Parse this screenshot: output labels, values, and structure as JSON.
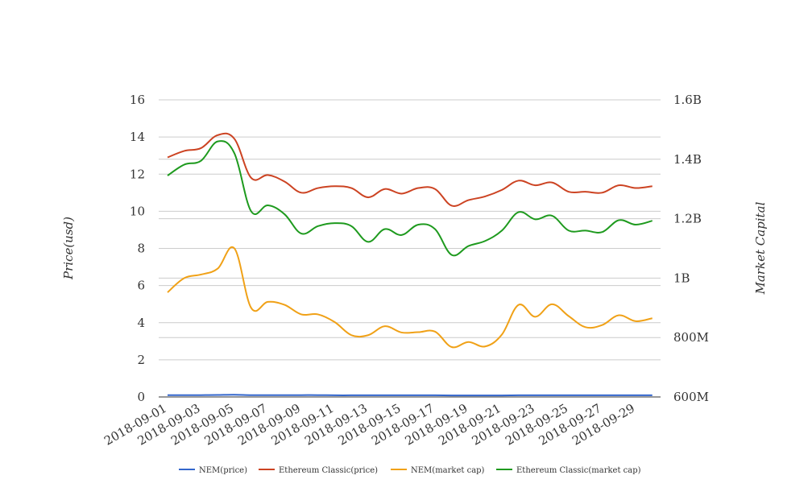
{
  "chart_data": {
    "type": "line",
    "x": [
      "2018-09-01",
      "2018-09-02",
      "2018-09-03",
      "2018-09-04",
      "2018-09-05",
      "2018-09-06",
      "2018-09-07",
      "2018-09-08",
      "2018-09-09",
      "2018-09-10",
      "2018-09-11",
      "2018-09-12",
      "2018-09-13",
      "2018-09-14",
      "2018-09-15",
      "2018-09-16",
      "2018-09-17",
      "2018-09-18",
      "2018-09-19",
      "2018-09-20",
      "2018-09-21",
      "2018-09-22",
      "2018-09-23",
      "2018-09-24",
      "2018-09-25",
      "2018-09-26",
      "2018-09-27",
      "2018-09-28",
      "2018-09-29",
      "2018-09-30"
    ],
    "x_tick_labels": [
      "2018-09-01",
      "2018-09-03",
      "2018-09-05",
      "2018-09-07",
      "2018-09-09",
      "2018-09-11",
      "2018-09-13",
      "2018-09-15",
      "2018-09-17",
      "2018-09-19",
      "2018-09-21",
      "2018-09-23",
      "2018-09-25",
      "2018-09-27",
      "2018-09-29"
    ],
    "ylabel": "Price(usd)",
    "y2label": "Market Capital",
    "ylim": [
      0,
      16
    ],
    "y_ticks": [
      0,
      2,
      4,
      6,
      8,
      10,
      12,
      14,
      16
    ],
    "y2lim": [
      600000000,
      1600000000
    ],
    "y2_ticks": [
      {
        "value": 600000000,
        "label": "600M"
      },
      {
        "value": 800000000,
        "label": "800M"
      },
      {
        "value": 1000000000,
        "label": "1B"
      },
      {
        "value": 1200000000,
        "label": "1.2B"
      },
      {
        "value": 1400000000,
        "label": "1.4B"
      },
      {
        "value": 1600000000,
        "label": "1.6B"
      }
    ],
    "grid": true,
    "legend_position": "bottom",
    "series": [
      {
        "name": "NEM(price)",
        "color": "#3366cc",
        "axis": "left",
        "values": [
          0.1,
          0.1,
          0.1,
          0.11,
          0.12,
          0.1,
          0.1,
          0.1,
          0.1,
          0.1,
          0.09,
          0.09,
          0.09,
          0.09,
          0.09,
          0.09,
          0.09,
          0.08,
          0.08,
          0.08,
          0.08,
          0.09,
          0.09,
          0.09,
          0.09,
          0.09,
          0.09,
          0.09,
          0.09,
          0.09
        ]
      },
      {
        "name": "Ethereum Classic(price)",
        "color": "#cc4322",
        "axis": "left",
        "values": [
          12.9,
          13.25,
          13.4,
          14.1,
          13.9,
          11.8,
          11.95,
          11.6,
          11.0,
          11.25,
          11.35,
          11.25,
          10.75,
          11.2,
          10.95,
          11.25,
          11.2,
          10.3,
          10.6,
          10.8,
          11.15,
          11.65,
          11.4,
          11.55,
          11.05,
          11.05,
          11.0,
          11.4,
          11.25,
          11.35
        ]
      },
      {
        "name": "NEM(market cap)",
        "color": "#f0a117",
        "axis": "right",
        "values": [
          952000000,
          1000000000,
          1012000000,
          1032000000,
          1100000000,
          900000000,
          920000000,
          910000000,
          878000000,
          878000000,
          852000000,
          808000000,
          808000000,
          838000000,
          817000000,
          818000000,
          820000000,
          768000000,
          785000000,
          770000000,
          810000000,
          910000000,
          870000000,
          912000000,
          872000000,
          835000000,
          842000000,
          875000000,
          855000000,
          865000000
        ]
      },
      {
        "name": "Ethereum Classic(market cap)",
        "color": "#1e9a1e",
        "axis": "right",
        "values": [
          1345000000,
          1382000000,
          1395000000,
          1460000000,
          1420000000,
          1225000000,
          1245000000,
          1215000000,
          1150000000,
          1175000000,
          1185000000,
          1175000000,
          1122000000,
          1165000000,
          1145000000,
          1180000000,
          1165000000,
          1078000000,
          1108000000,
          1125000000,
          1160000000,
          1222000000,
          1198000000,
          1210000000,
          1160000000,
          1160000000,
          1155000000,
          1195000000,
          1180000000,
          1193000000
        ]
      }
    ]
  }
}
